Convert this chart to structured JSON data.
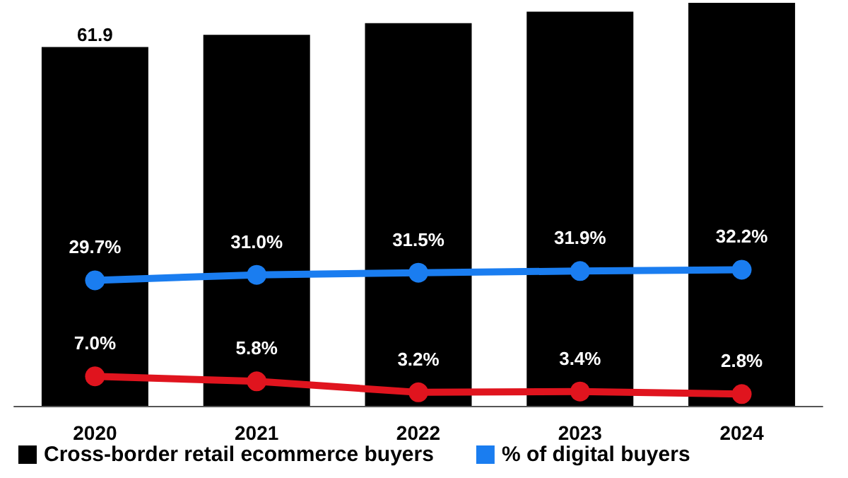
{
  "chart_data": {
    "type": "bar",
    "categories": [
      "2020",
      "2021",
      "2022",
      "2023",
      "2024"
    ],
    "series": [
      {
        "name": "Cross-border retail ecommerce buyers",
        "color": "#000000",
        "values": [
          61.9,
          64,
          66,
          68,
          69.5
        ],
        "value_labels": [
          "61.9",
          null,
          null,
          null,
          null
        ]
      },
      {
        "name": "% of digital buyers",
        "type": "line",
        "axis": "y2",
        "color": "#1a7df0",
        "values": [
          29.7,
          31.0,
          31.5,
          31.9,
          32.2
        ],
        "value_labels": [
          "29.7%",
          "31.0%",
          "31.5%",
          "31.9%",
          "32.2%"
        ]
      },
      {
        "type": "line",
        "axis": "y2",
        "color": "#e0141e",
        "values": [
          7.0,
          5.8,
          3.2,
          3.4,
          2.8
        ],
        "value_labels": [
          "7.0%",
          "5.8%",
          "3.2%",
          "3.4%",
          "2.8%"
        ]
      }
    ],
    "ylim": [
      0,
      70
    ],
    "y2lim": [
      0,
      96
    ],
    "tick_labels": "x",
    "grid": false,
    "legend": "bottom left",
    "marker": "circle",
    "line_style": "solid"
  }
}
